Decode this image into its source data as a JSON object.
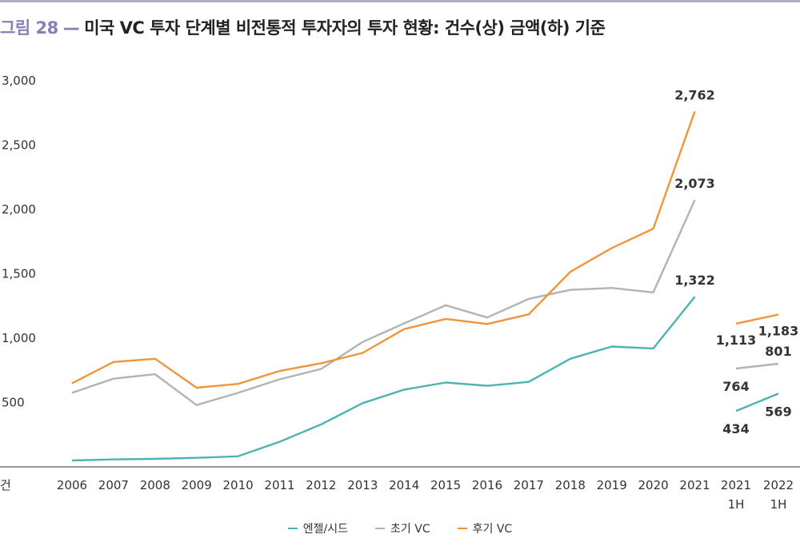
{
  "header": {
    "figure_label": "그림 28",
    "dash": "—",
    "title": "미국 VC 투자 단계별 비전통적 투자자의 투자 현황: 건수(상) 금액(하) 기준"
  },
  "chart_data": {
    "type": "line",
    "title": "미국 VC 투자 단계별 비전통적 투자자의 투자 현황: 건수(상) 금액(하) 기준",
    "ylabel": "건",
    "ylim": [
      0,
      3000
    ],
    "yticks": [
      "3,000",
      "2,500",
      "2,000",
      "1,500",
      "1,000",
      "500"
    ],
    "ytick_values": [
      3000,
      2500,
      2000,
      1500,
      1000,
      500
    ],
    "categories": [
      "2006",
      "2007",
      "2008",
      "2009",
      "2010",
      "2011",
      "2012",
      "2013",
      "2014",
      "2015",
      "2016",
      "2017",
      "2018",
      "2019",
      "2020",
      "2021"
    ],
    "half_year_categories": [
      {
        "year": "2021",
        "period": "1H"
      },
      {
        "year": "2022",
        "period": "1H"
      }
    ],
    "grid": false,
    "legend_position": "bottom",
    "series": [
      {
        "name": "엔젤/시드",
        "color": "#4db3b0",
        "values": [
          50,
          58,
          62,
          70,
          82,
          195,
          330,
          495,
          600,
          655,
          630,
          660,
          840,
          935,
          920,
          1322
        ],
        "half_year_values": [
          434,
          569
        ],
        "labels": {
          "2021": "1,322",
          "2021 1H": "434",
          "2022 1H": "569"
        }
      },
      {
        "name": "초기 VC",
        "color": "#b3b3b3",
        "values": [
          575,
          685,
          720,
          480,
          575,
          680,
          760,
          970,
          1115,
          1255,
          1160,
          1305,
          1375,
          1390,
          1355,
          2073
        ],
        "half_year_values": [
          764,
          801
        ],
        "labels": {
          "2021": "2,073",
          "2021 1H": "764",
          "2022 1H": "801"
        }
      },
      {
        "name": "후기 VC",
        "color": "#f0953a",
        "values": [
          650,
          815,
          840,
          615,
          645,
          745,
          805,
          885,
          1070,
          1150,
          1110,
          1185,
          1515,
          1700,
          1850,
          2762
        ],
        "half_year_values": [
          1113,
          1183
        ],
        "labels": {
          "2021": "2,762",
          "2021 1H": "1,113",
          "2022 1H": "1,183"
        }
      }
    ]
  }
}
